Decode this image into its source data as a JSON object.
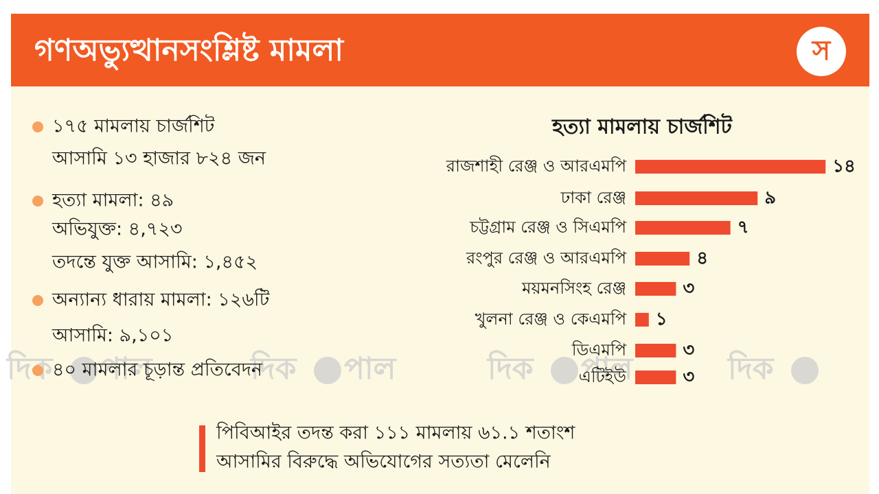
{
  "header": {
    "title": "গণঅভ্যুত্থানসংশ্লিষ্ট মামলা",
    "logo": "স"
  },
  "bullets": [
    {
      "lines": [
        "১৭৫ মামলায় চার্জশিট",
        "আসামি ১৩ হাজার ৮২৪ জন"
      ]
    },
    {
      "lines": [
        "হত্যা মামলা: ৪৯",
        "অভিযুক্ত: ৪,৭২৩",
        "তদন্তে যুক্ত আসামি: ১,৪৫২"
      ]
    },
    {
      "lines": [
        "অন্যান্য ধারায় মামলা: ১২৬টি",
        "আসামি: ৯,১০১"
      ]
    },
    {
      "lines": [
        "৪০ মামলার চূড়ান্ত প্রতিবেদন"
      ]
    }
  ],
  "chart_data": {
    "type": "hbar",
    "title": "হত্যা মামলায় চার্জশিট",
    "categories": [
      "রাজশাহী রেঞ্জ ও আরএমপি",
      "ঢাকা রেঞ্জ",
      "চট্টগ্রাম রেঞ্জ ও সিএমপি",
      "রংপুর রেঞ্জ ও আরএমপি",
      "ময়মনসিংহ রেঞ্জ",
      "খুলনা রেঞ্জ ও কেএমপি",
      "ডিএমপি",
      "এটিইউ"
    ],
    "values": [
      14,
      9,
      7,
      4,
      3,
      1,
      3,
      3
    ],
    "value_labels": [
      "১৪",
      "৯",
      "৭",
      "৪",
      "৩",
      "১",
      "৩",
      "৩"
    ],
    "color": "#ef4b2f"
  },
  "footnote": {
    "lines": [
      "পিবিআইর তদন্ত করা ১১১ মামলায় ৬১.১ শতাংশ",
      "আসামির বিরুদ্ধে অভিযোগের সত্যতা মেলেনি"
    ]
  },
  "watermark": [
    "দিক",
    "পাল"
  ]
}
